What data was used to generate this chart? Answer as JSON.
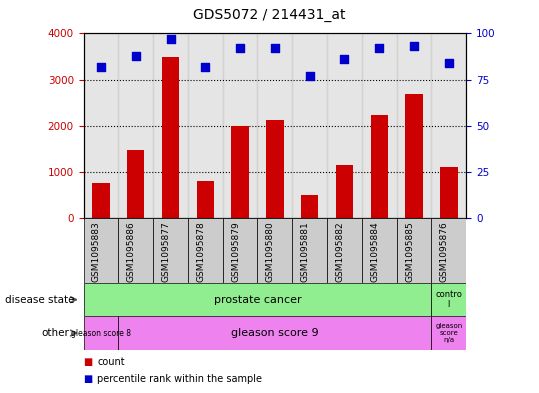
{
  "title": "GDS5072 / 214431_at",
  "samples": [
    "GSM1095883",
    "GSM1095886",
    "GSM1095877",
    "GSM1095878",
    "GSM1095879",
    "GSM1095880",
    "GSM1095881",
    "GSM1095882",
    "GSM1095884",
    "GSM1095885",
    "GSM1095876"
  ],
  "counts": [
    750,
    1480,
    3480,
    800,
    2000,
    2120,
    490,
    1140,
    2230,
    2680,
    1100
  ],
  "percentile_ranks": [
    82,
    88,
    97,
    82,
    92,
    92,
    77,
    86,
    92,
    93,
    84
  ],
  "ylim_left": [
    0,
    4000
  ],
  "ylim_right": [
    0,
    100
  ],
  "yticks_left": [
    0,
    1000,
    2000,
    3000,
    4000
  ],
  "yticks_right": [
    0,
    25,
    50,
    75,
    100
  ],
  "bar_color": "#cc0000",
  "dot_color": "#0000cc",
  "bar_width": 0.5,
  "bg_color": "#ffffff",
  "tick_bg_color": "#cccccc",
  "cancer_color": "#90ee90",
  "gleason_color": "#ee82ee",
  "legend_count_label": "count",
  "legend_pct_label": "percentile rank within the sample"
}
